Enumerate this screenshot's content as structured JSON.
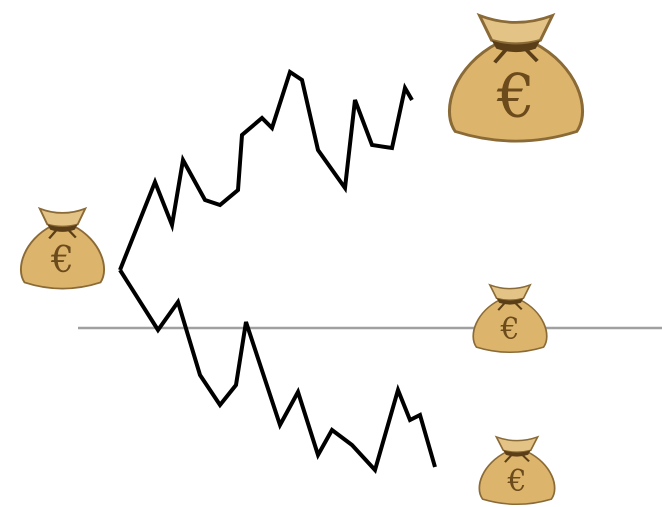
{
  "bags": [
    {
      "symbol": "€"
    },
    {
      "symbol": "€"
    },
    {
      "symbol": "€"
    },
    {
      "symbol": "€"
    }
  ]
}
